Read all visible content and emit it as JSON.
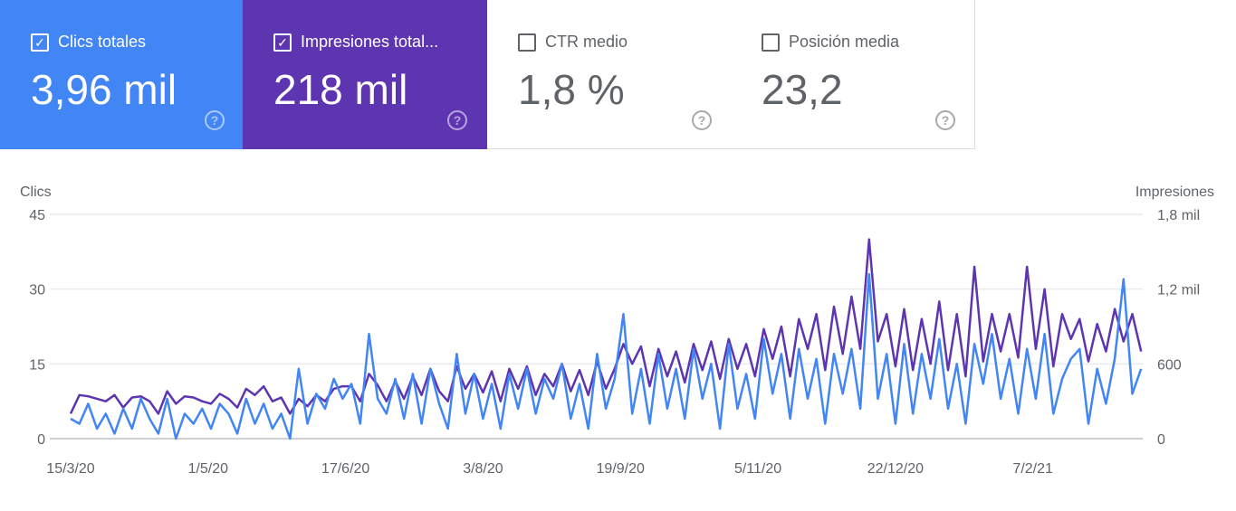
{
  "cards": [
    {
      "label": "Clics totales",
      "value": "3,96 mil",
      "checked": true,
      "color": "#4285f4"
    },
    {
      "label": "Impresiones total...",
      "value": "218 mil",
      "checked": true,
      "color": "#5e35b1"
    },
    {
      "label": "CTR medio",
      "value": "1,8 %",
      "checked": false
    },
    {
      "label": "Posición media",
      "value": "23,2",
      "checked": false
    }
  ],
  "icons": {
    "checked": "✓",
    "help": "?"
  },
  "chart_data": {
    "type": "line",
    "start_date": "15/3/20",
    "step_days": 3,
    "left_axis": {
      "label": "Clics",
      "ticks": [
        "0",
        "15",
        "30",
        "45"
      ],
      "range": [
        0,
        45
      ]
    },
    "right_axis": {
      "label": "Impresiones",
      "ticks": [
        "0",
        "600",
        "1,2 mil",
        "1,8 mil"
      ],
      "range": [
        0,
        1800
      ]
    },
    "x_ticks": [
      {
        "label": "15/3/20",
        "day": 0
      },
      {
        "label": "1/5/20",
        "day": 47
      },
      {
        "label": "17/6/20",
        "day": 94
      },
      {
        "label": "3/8/20",
        "day": 141
      },
      {
        "label": "19/9/20",
        "day": 188
      },
      {
        "label": "5/11/20",
        "day": 235
      },
      {
        "label": "22/12/20",
        "day": 282
      },
      {
        "label": "7/2/21",
        "day": 329
      }
    ],
    "series": [
      {
        "name": "Clics",
        "axis": "left",
        "color": "#4285f4",
        "values": [
          4,
          3,
          7,
          2,
          5,
          1,
          6,
          2,
          8,
          4,
          1,
          8,
          0,
          5,
          3,
          6,
          2,
          7,
          5,
          1,
          8,
          3,
          7,
          2,
          5,
          0,
          14,
          3,
          9,
          6,
          12,
          8,
          11,
          3,
          21,
          8,
          5,
          12,
          4,
          13,
          3,
          14,
          7,
          2,
          17,
          5,
          13,
          4,
          11,
          2,
          13,
          6,
          14,
          5,
          12,
          8,
          15,
          4,
          11,
          2,
          17,
          6,
          12,
          25,
          5,
          14,
          3,
          17,
          6,
          14,
          4,
          18,
          8,
          15,
          2,
          19,
          6,
          13,
          4,
          20,
          9,
          17,
          4,
          18,
          8,
          16,
          3,
          17,
          9,
          18,
          6,
          33,
          8,
          17,
          3,
          19,
          5,
          17,
          8,
          20,
          6,
          15,
          3,
          19,
          11,
          21,
          8,
          16,
          5,
          18,
          8,
          21,
          5,
          12,
          16,
          18,
          3,
          14,
          7,
          16,
          32,
          9,
          14
        ]
      },
      {
        "name": "Impresiones",
        "axis": "right",
        "color": "#5e35b1",
        "values": [
          200,
          350,
          340,
          320,
          300,
          350,
          250,
          330,
          340,
          300,
          200,
          380,
          280,
          340,
          330,
          300,
          280,
          360,
          320,
          250,
          400,
          350,
          420,
          300,
          330,
          200,
          320,
          260,
          350,
          300,
          400,
          420,
          420,
          300,
          520,
          430,
          300,
          460,
          320,
          500,
          350,
          560,
          380,
          300,
          580,
          400,
          520,
          370,
          540,
          300,
          560,
          400,
          580,
          350,
          520,
          420,
          600,
          380,
          550,
          350,
          620,
          400,
          560,
          760,
          600,
          740,
          420,
          720,
          500,
          700,
          450,
          760,
          550,
          780,
          480,
          800,
          560,
          760,
          500,
          880,
          640,
          900,
          500,
          960,
          720,
          1000,
          550,
          1060,
          680,
          1140,
          720,
          1600,
          780,
          1000,
          580,
          1040,
          550,
          960,
          600,
          1100,
          550,
          1000,
          500,
          1380,
          620,
          1000,
          700,
          1000,
          650,
          1380,
          720,
          1200,
          580,
          1000,
          800,
          960,
          620,
          920,
          700,
          1040,
          780,
          1000,
          700
        ]
      }
    ]
  }
}
